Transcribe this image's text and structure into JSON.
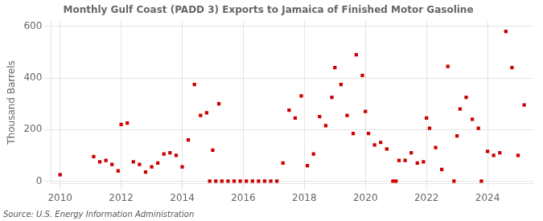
{
  "chart_data": {
    "type": "scatter",
    "title": "Monthly Gulf Coast (PADD 3) Exports to Jamaica of Finished Motor Gasoline",
    "ylabel": "Thousand Barrels",
    "annotations": [
      "Source: U.S. Energy Information Administration"
    ],
    "color": "#cc0000",
    "marker": "square",
    "grid": true,
    "xlim": [
      2009.7,
      2025.5
    ],
    "xticks": [
      2010,
      2012,
      2014,
      2016,
      2018,
      2020,
      2022,
      2024
    ],
    "ylim": [
      -10,
      620
    ],
    "yticks": [
      0,
      200,
      400,
      600
    ],
    "x": [
      2010.0,
      2011.1,
      2011.3,
      2011.5,
      2011.7,
      2011.9,
      2012.0,
      2012.2,
      2012.4,
      2012.6,
      2012.8,
      2013.0,
      2013.2,
      2013.4,
      2013.6,
      2013.8,
      2014.0,
      2014.2,
      2014.4,
      2014.6,
      2014.8,
      2015.0,
      2015.2,
      2014.9,
      2015.1,
      2015.3,
      2015.5,
      2015.7,
      2015.9,
      2016.1,
      2016.3,
      2016.5,
      2016.7,
      2016.9,
      2017.1,
      2017.3,
      2017.5,
      2017.7,
      2017.9,
      2018.1,
      2018.3,
      2018.5,
      2018.7,
      2018.9,
      2019.0,
      2019.2,
      2019.4,
      2019.6,
      2019.7,
      2019.9,
      2020.0,
      2020.1,
      2020.3,
      2020.5,
      2020.7,
      2020.9,
      2021.0,
      2021.1,
      2021.3,
      2021.5,
      2021.7,
      2021.9,
      2022.0,
      2022.1,
      2022.3,
      2022.5,
      2022.7,
      2022.9,
      2023.0,
      2023.1,
      2023.3,
      2023.5,
      2023.7,
      2023.8,
      2024.0,
      2024.2,
      2024.4,
      2024.6,
      2024.8,
      2025.0,
      2025.2
    ],
    "values": [
      25,
      95,
      75,
      80,
      65,
      40,
      220,
      225,
      75,
      65,
      35,
      55,
      70,
      105,
      110,
      100,
      55,
      160,
      375,
      255,
      265,
      120,
      300,
      0,
      0,
      0,
      0,
      0,
      0,
      0,
      0,
      0,
      0,
      0,
      0,
      70,
      275,
      245,
      330,
      60,
      105,
      250,
      215,
      325,
      440,
      375,
      255,
      185,
      490,
      410,
      270,
      185,
      140,
      150,
      125,
      0,
      0,
      80,
      80,
      110,
      70,
      75,
      245,
      205,
      130,
      45,
      445,
      0,
      175,
      280,
      325,
      240,
      205,
      0,
      115,
      100,
      110,
      580,
      440,
      100,
      295
    ]
  }
}
